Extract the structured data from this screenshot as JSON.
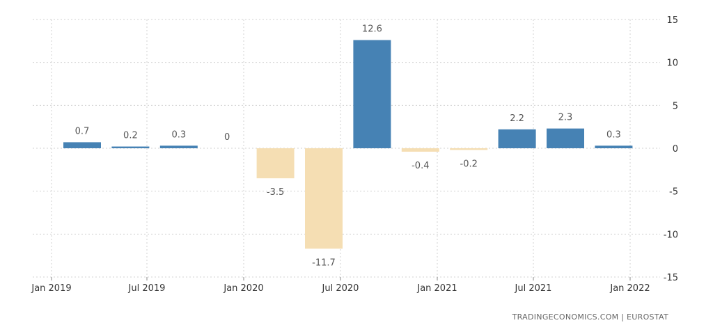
{
  "chart_data": {
    "type": "bar",
    "categories": [
      "2019 Q1",
      "2019 Q2",
      "2019 Q3",
      "2019 Q4",
      "2020 Q1",
      "2020 Q2",
      "2020 Q3",
      "2020 Q4",
      "2021 Q1",
      "2021 Q2",
      "2021 Q3",
      "2021 Q4"
    ],
    "values": [
      0.7,
      0.2,
      0.3,
      0,
      -3.5,
      -11.7,
      12.6,
      -0.4,
      -0.2,
      2.2,
      2.3,
      0.3
    ],
    "data_labels": [
      "0.7",
      "0.2",
      "0.3",
      "0",
      "-3.5",
      "-11.7",
      "12.6",
      "-0.4",
      "-0.2",
      "2.2",
      "2.3",
      "0.3"
    ],
    "x_tick_labels": [
      "Jan 2019",
      "Jul 2019",
      "Jan 2020",
      "Jul 2020",
      "Jan 2021",
      "Jul 2021",
      "Jan 2022"
    ],
    "y_ticks": [
      15,
      10,
      5,
      0,
      -5,
      -10,
      -15
    ],
    "ylim": [
      -15,
      15
    ],
    "y_axis_side": "right",
    "grid": true,
    "title": "",
    "xlabel": "",
    "ylabel": "",
    "colors": {
      "positive": "#4682b4",
      "negative": "#f5deb3",
      "grid": "#d0d0d0"
    }
  },
  "source": "TRADINGECONOMICS.COM  |  EUROSTAT"
}
